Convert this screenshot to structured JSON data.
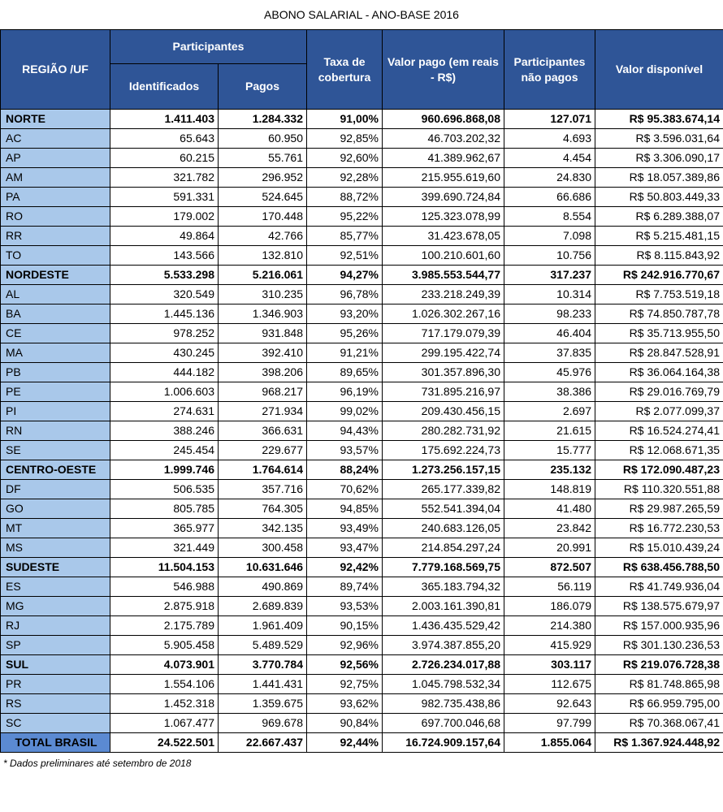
{
  "title": "ABONO SALARIAL - ANO-BASE 2016",
  "header": {
    "region": "REGIÃO /UF",
    "participants": "Participantes",
    "identified": "Identificados",
    "paid": "Pagos",
    "coverage": "Taxa de cobertura",
    "amount_paid": "Valor pago (em reais - R$)",
    "unpaid": "Participantes não pagos",
    "available": "Valor disponível"
  },
  "regions": [
    {
      "row": [
        "NORTE",
        "1.411.403",
        "1.284.332",
        "91,00%",
        "960.696.868,08",
        "127.071",
        "R$ 95.383.674,14"
      ],
      "states": [
        [
          "AC",
          "65.643",
          "60.950",
          "92,85%",
          "46.703.202,32",
          "4.693",
          "R$ 3.596.031,64"
        ],
        [
          "AP",
          "60.215",
          "55.761",
          "92,60%",
          "41.389.962,67",
          "4.454",
          "R$ 3.306.090,17"
        ],
        [
          "AM",
          "321.782",
          "296.952",
          "92,28%",
          "215.955.619,60",
          "24.830",
          "R$ 18.057.389,86"
        ],
        [
          "PA",
          "591.331",
          "524.645",
          "88,72%",
          "399.690.724,84",
          "66.686",
          "R$ 50.803.449,33"
        ],
        [
          "RO",
          "179.002",
          "170.448",
          "95,22%",
          "125.323.078,99",
          "8.554",
          "R$ 6.289.388,07"
        ],
        [
          "RR",
          "49.864",
          "42.766",
          "85,77%",
          "31.423.678,05",
          "7.098",
          "R$ 5.215.481,15"
        ],
        [
          "TO",
          "143.566",
          "132.810",
          "92,51%",
          "100.210.601,60",
          "10.756",
          "R$ 8.115.843,92"
        ]
      ]
    },
    {
      "row": [
        "NORDESTE",
        "5.533.298",
        "5.216.061",
        "94,27%",
        "3.985.553.544,77",
        "317.237",
        "R$ 242.916.770,67"
      ],
      "states": [
        [
          "AL",
          "320.549",
          "310.235",
          "96,78%",
          "233.218.249,39",
          "10.314",
          "R$ 7.753.519,18"
        ],
        [
          "BA",
          "1.445.136",
          "1.346.903",
          "93,20%",
          "1.026.302.267,16",
          "98.233",
          "R$ 74.850.787,78"
        ],
        [
          "CE",
          "978.252",
          "931.848",
          "95,26%",
          "717.179.079,39",
          "46.404",
          "R$ 35.713.955,50"
        ],
        [
          "MA",
          "430.245",
          "392.410",
          "91,21%",
          "299.195.422,74",
          "37.835",
          "R$ 28.847.528,91"
        ],
        [
          "PB",
          "444.182",
          "398.206",
          "89,65%",
          "301.357.896,30",
          "45.976",
          "R$ 36.064.164,38"
        ],
        [
          "PE",
          "1.006.603",
          "968.217",
          "96,19%",
          "731.895.216,97",
          "38.386",
          "R$ 29.016.769,79"
        ],
        [
          "PI",
          "274.631",
          "271.934",
          "99,02%",
          "209.430.456,15",
          "2.697",
          "R$ 2.077.099,37"
        ],
        [
          "RN",
          "388.246",
          "366.631",
          "94,43%",
          "280.282.731,92",
          "21.615",
          "R$ 16.524.274,41"
        ],
        [
          "SE",
          "245.454",
          "229.677",
          "93,57%",
          "175.692.224,73",
          "15.777",
          "R$ 12.068.671,35"
        ]
      ]
    },
    {
      "row": [
        "CENTRO-OESTE",
        "1.999.746",
        "1.764.614",
        "88,24%",
        "1.273.256.157,15",
        "235.132",
        "R$ 172.090.487,23"
      ],
      "states": [
        [
          "DF",
          "506.535",
          "357.716",
          "70,62%",
          "265.177.339,82",
          "148.819",
          "R$ 110.320.551,88"
        ],
        [
          "GO",
          "805.785",
          "764.305",
          "94,85%",
          "552.541.394,04",
          "41.480",
          "R$ 29.987.265,59"
        ],
        [
          "MT",
          "365.977",
          "342.135",
          "93,49%",
          "240.683.126,05",
          "23.842",
          "R$ 16.772.230,53"
        ],
        [
          "MS",
          "321.449",
          "300.458",
          "93,47%",
          "214.854.297,24",
          "20.991",
          "R$ 15.010.439,24"
        ]
      ]
    },
    {
      "row": [
        "SUDESTE",
        "11.504.153",
        "10.631.646",
        "92,42%",
        "7.779.168.569,75",
        "872.507",
        "R$ 638.456.788,50"
      ],
      "states": [
        [
          "ES",
          "546.988",
          "490.869",
          "89,74%",
          "365.183.794,32",
          "56.119",
          "R$ 41.749.936,04"
        ],
        [
          "MG",
          "2.875.918",
          "2.689.839",
          "93,53%",
          "2.003.161.390,81",
          "186.079",
          "R$ 138.575.679,97"
        ],
        [
          "RJ",
          "2.175.789",
          "1.961.409",
          "90,15%",
          "1.436.435.529,42",
          "214.380",
          "R$ 157.000.935,96"
        ],
        [
          "SP",
          "5.905.458",
          "5.489.529",
          "92,96%",
          "3.974.387.855,20",
          "415.929",
          "R$ 301.130.236,53"
        ]
      ]
    },
    {
      "row": [
        "SUL",
        "4.073.901",
        "3.770.784",
        "92,56%",
        "2.726.234.017,88",
        "303.117",
        "R$ 219.076.728,38"
      ],
      "states": [
        [
          "PR",
          "1.554.106",
          "1.441.431",
          "92,75%",
          "1.045.798.532,34",
          "112.675",
          "R$ 81.748.865,98"
        ],
        [
          "RS",
          "1.452.318",
          "1.359.675",
          "93,62%",
          "982.735.438,86",
          "92.643",
          "R$ 66.959.795,00"
        ],
        [
          "SC",
          "1.067.477",
          "969.678",
          "90,84%",
          "697.700.046,68",
          "97.799",
          "R$ 70.368.067,41"
        ]
      ]
    }
  ],
  "total": [
    "TOTAL BRASIL",
    "24.522.501",
    "22.667.437",
    "92,44%",
    "16.724.909.157,64",
    "1.855.064",
    "R$ 1.367.924.448,92"
  ],
  "footnote": "* Dados preliminares até setembro de 2018"
}
